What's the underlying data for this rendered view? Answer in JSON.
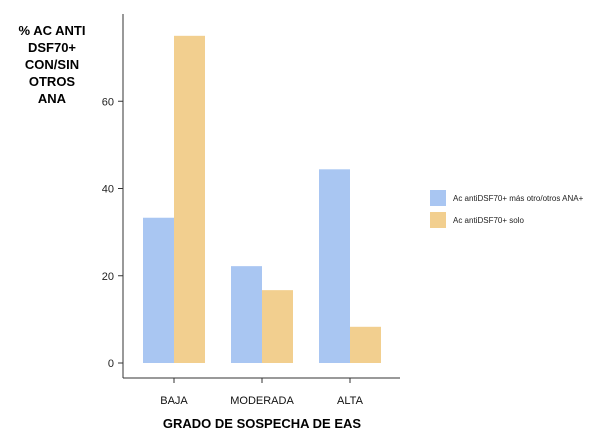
{
  "chart_data": {
    "type": "bar",
    "title": "",
    "ylabel_lines": [
      "% AC ANTI",
      "DSF70+",
      "CON/SIN OTROS",
      "ANA"
    ],
    "xlabel": "GRADO DE SOSPECHA DE EAS",
    "categories": [
      "BAJA",
      "MODERADA",
      "ALTA"
    ],
    "series": [
      {
        "name": "Ac antiDSF70+ más otro/otros ANA+",
        "color": "#a9c6f2",
        "values": [
          33.3,
          22.2,
          44.4
        ]
      },
      {
        "name": "Ac antiDSF70+ solo",
        "color": "#f2cf8f",
        "values": [
          75.0,
          16.7,
          8.3
        ]
      }
    ],
    "ylim": [
      0,
      80
    ],
    "yticks": [
      0,
      20,
      40,
      60
    ],
    "grid": false,
    "legend_position": "right"
  }
}
